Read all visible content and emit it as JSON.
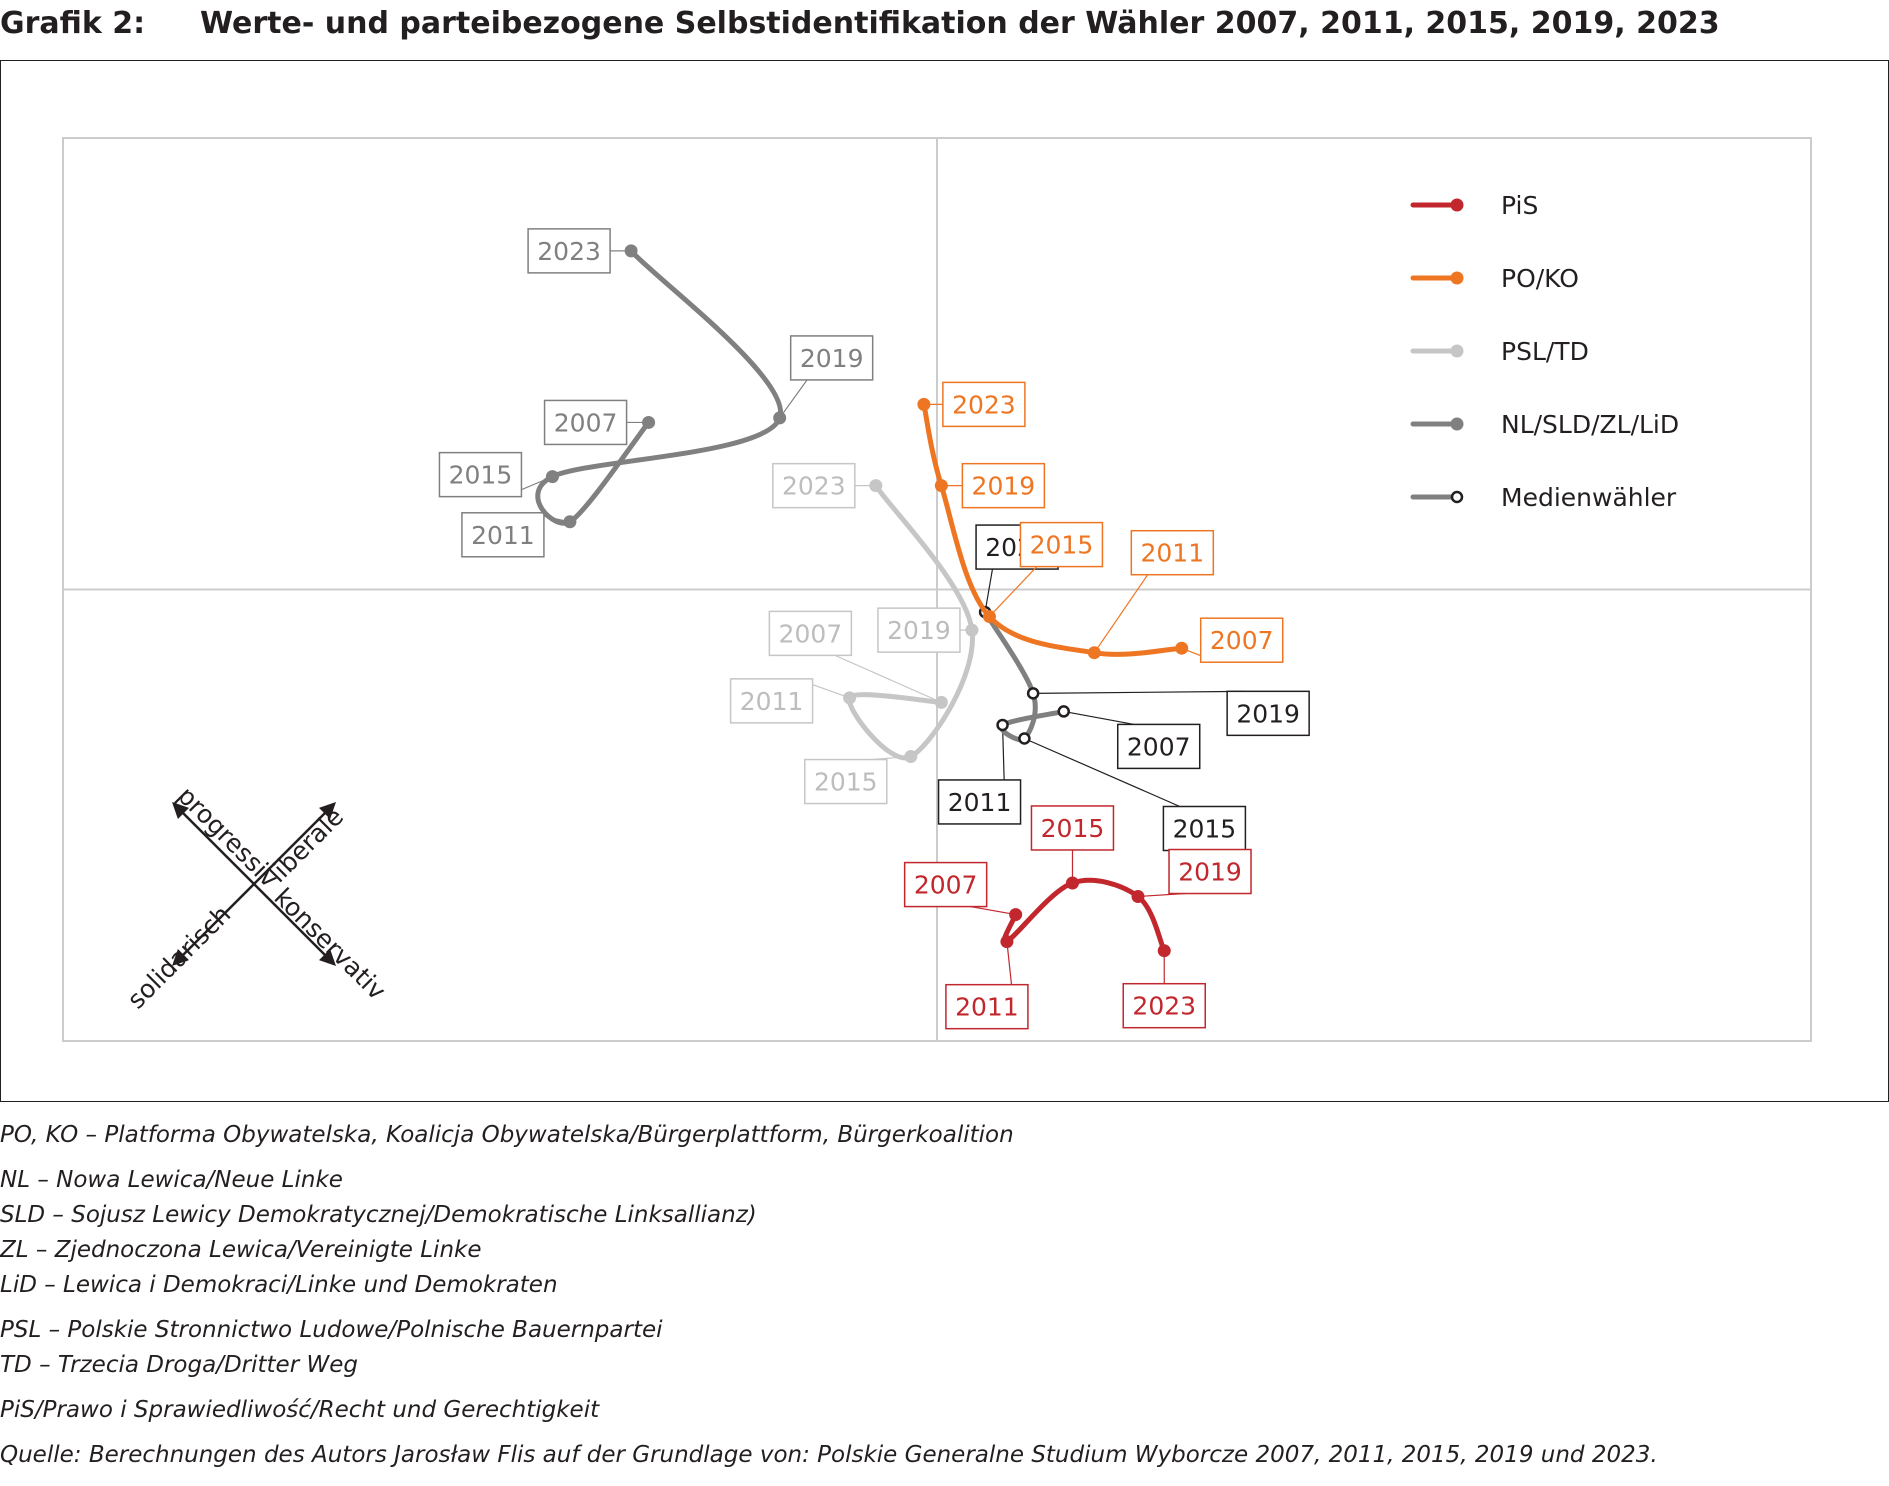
{
  "header": {
    "label": "Grafik 2:",
    "title": "Werte- und parteibezogene Selbstidentifikation der Wähler 2007, 2011, 2015, 2019, 2023"
  },
  "chart_data": {
    "type": "scatter",
    "title": "Werte- und parteibezogene Selbstidentifikation der Wähler 2007, 2011, 2015, 2019, 2023",
    "xlabel": "",
    "ylabel": "",
    "xlim": [
      -100,
      100
    ],
    "ylim": [
      -100,
      100
    ],
    "grid": "quadrants",
    "legend_position": "top-right",
    "axis_arrows": {
      "up_left": "progressiv",
      "up_right": "liberale",
      "down_left": "solidarisch",
      "down_right": "konservativ"
    },
    "series": [
      {
        "name": "PiS",
        "color": "#c1272d",
        "marker": "filled",
        "points": [
          {
            "year": "2007",
            "x": 9,
            "y": -72
          },
          {
            "year": "2011",
            "x": 8,
            "y": -78
          },
          {
            "year": "2015",
            "x": 15.5,
            "y": -65
          },
          {
            "year": "2019",
            "x": 23,
            "y": -68
          },
          {
            "year": "2023",
            "x": 26,
            "y": -80
          }
        ]
      },
      {
        "name": "PO/KO",
        "color": "#ee7623",
        "marker": "filled",
        "points": [
          {
            "year": "2007",
            "x": 28,
            "y": -13
          },
          {
            "year": "2011",
            "x": 18,
            "y": -14
          },
          {
            "year": "2015",
            "x": 6,
            "y": -6
          },
          {
            "year": "2019",
            "x": 0.5,
            "y": 23
          },
          {
            "year": "2023",
            "x": -1.5,
            "y": 41
          }
        ]
      },
      {
        "name": "PSL/TD",
        "color": "#c6c6c6",
        "marker": "filled",
        "points": [
          {
            "year": "2007",
            "x": 0.5,
            "y": -25
          },
          {
            "year": "2011",
            "x": -10,
            "y": -24
          },
          {
            "year": "2015",
            "x": -3,
            "y": -37
          },
          {
            "year": "2019",
            "x": 4,
            "y": -9
          },
          {
            "year": "2023",
            "x": -7,
            "y": 23
          }
        ]
      },
      {
        "name": "NL/SLD/ZL/LiD",
        "color": "#808080",
        "marker": "filled",
        "points": [
          {
            "year": "2007",
            "x": -33,
            "y": 37
          },
          {
            "year": "2011",
            "x": -42,
            "y": 15
          },
          {
            "year": "2015",
            "x": -44,
            "y": 25
          },
          {
            "year": "2019",
            "x": -18,
            "y": 38
          },
          {
            "year": "2023",
            "x": -35,
            "y": 75
          }
        ]
      },
      {
        "name": "Medienwähler",
        "color": "#808080",
        "marker": "open",
        "points": [
          {
            "year": "2007",
            "x": 14.5,
            "y": -27
          },
          {
            "year": "2011",
            "x": 7.5,
            "y": -30
          },
          {
            "year": "2015",
            "x": 10,
            "y": -33
          },
          {
            "year": "2019",
            "x": 11,
            "y": -23
          },
          {
            "year": "2023",
            "x": 5.5,
            "y": -5
          }
        ]
      }
    ]
  },
  "notes": {
    "lines": [
      "PO, KO – Platforma Obywatelska, Koalicja Obywatelska/Bürgerplattform, Bürgerkoalition",
      "NL – Nowa Lewica/Neue Linke",
      "SLD – Sojusz Lewicy Demokratycznej/Demokratische Linksallianz)",
      "ZL – Zjednoczona Lewica/Vereinigte Linke",
      "LiD – Lewica i Demokraci/Linke und Demokraten",
      "PSL – Polskie Stronnictwo Ludowe/Polnische Bauernpartei",
      "TD – Trzecia Droga/Dritter Weg",
      "PiS/Prawo i Sprawiedliwość/Recht und Gerechtigkeit",
      "Quelle:  Berechnungen des Autors Jarosław Flis auf der Grundlage von: Polskie Generalne Studium Wyborcze 2007, 2011, 2015, 2019 und 2023."
    ]
  }
}
